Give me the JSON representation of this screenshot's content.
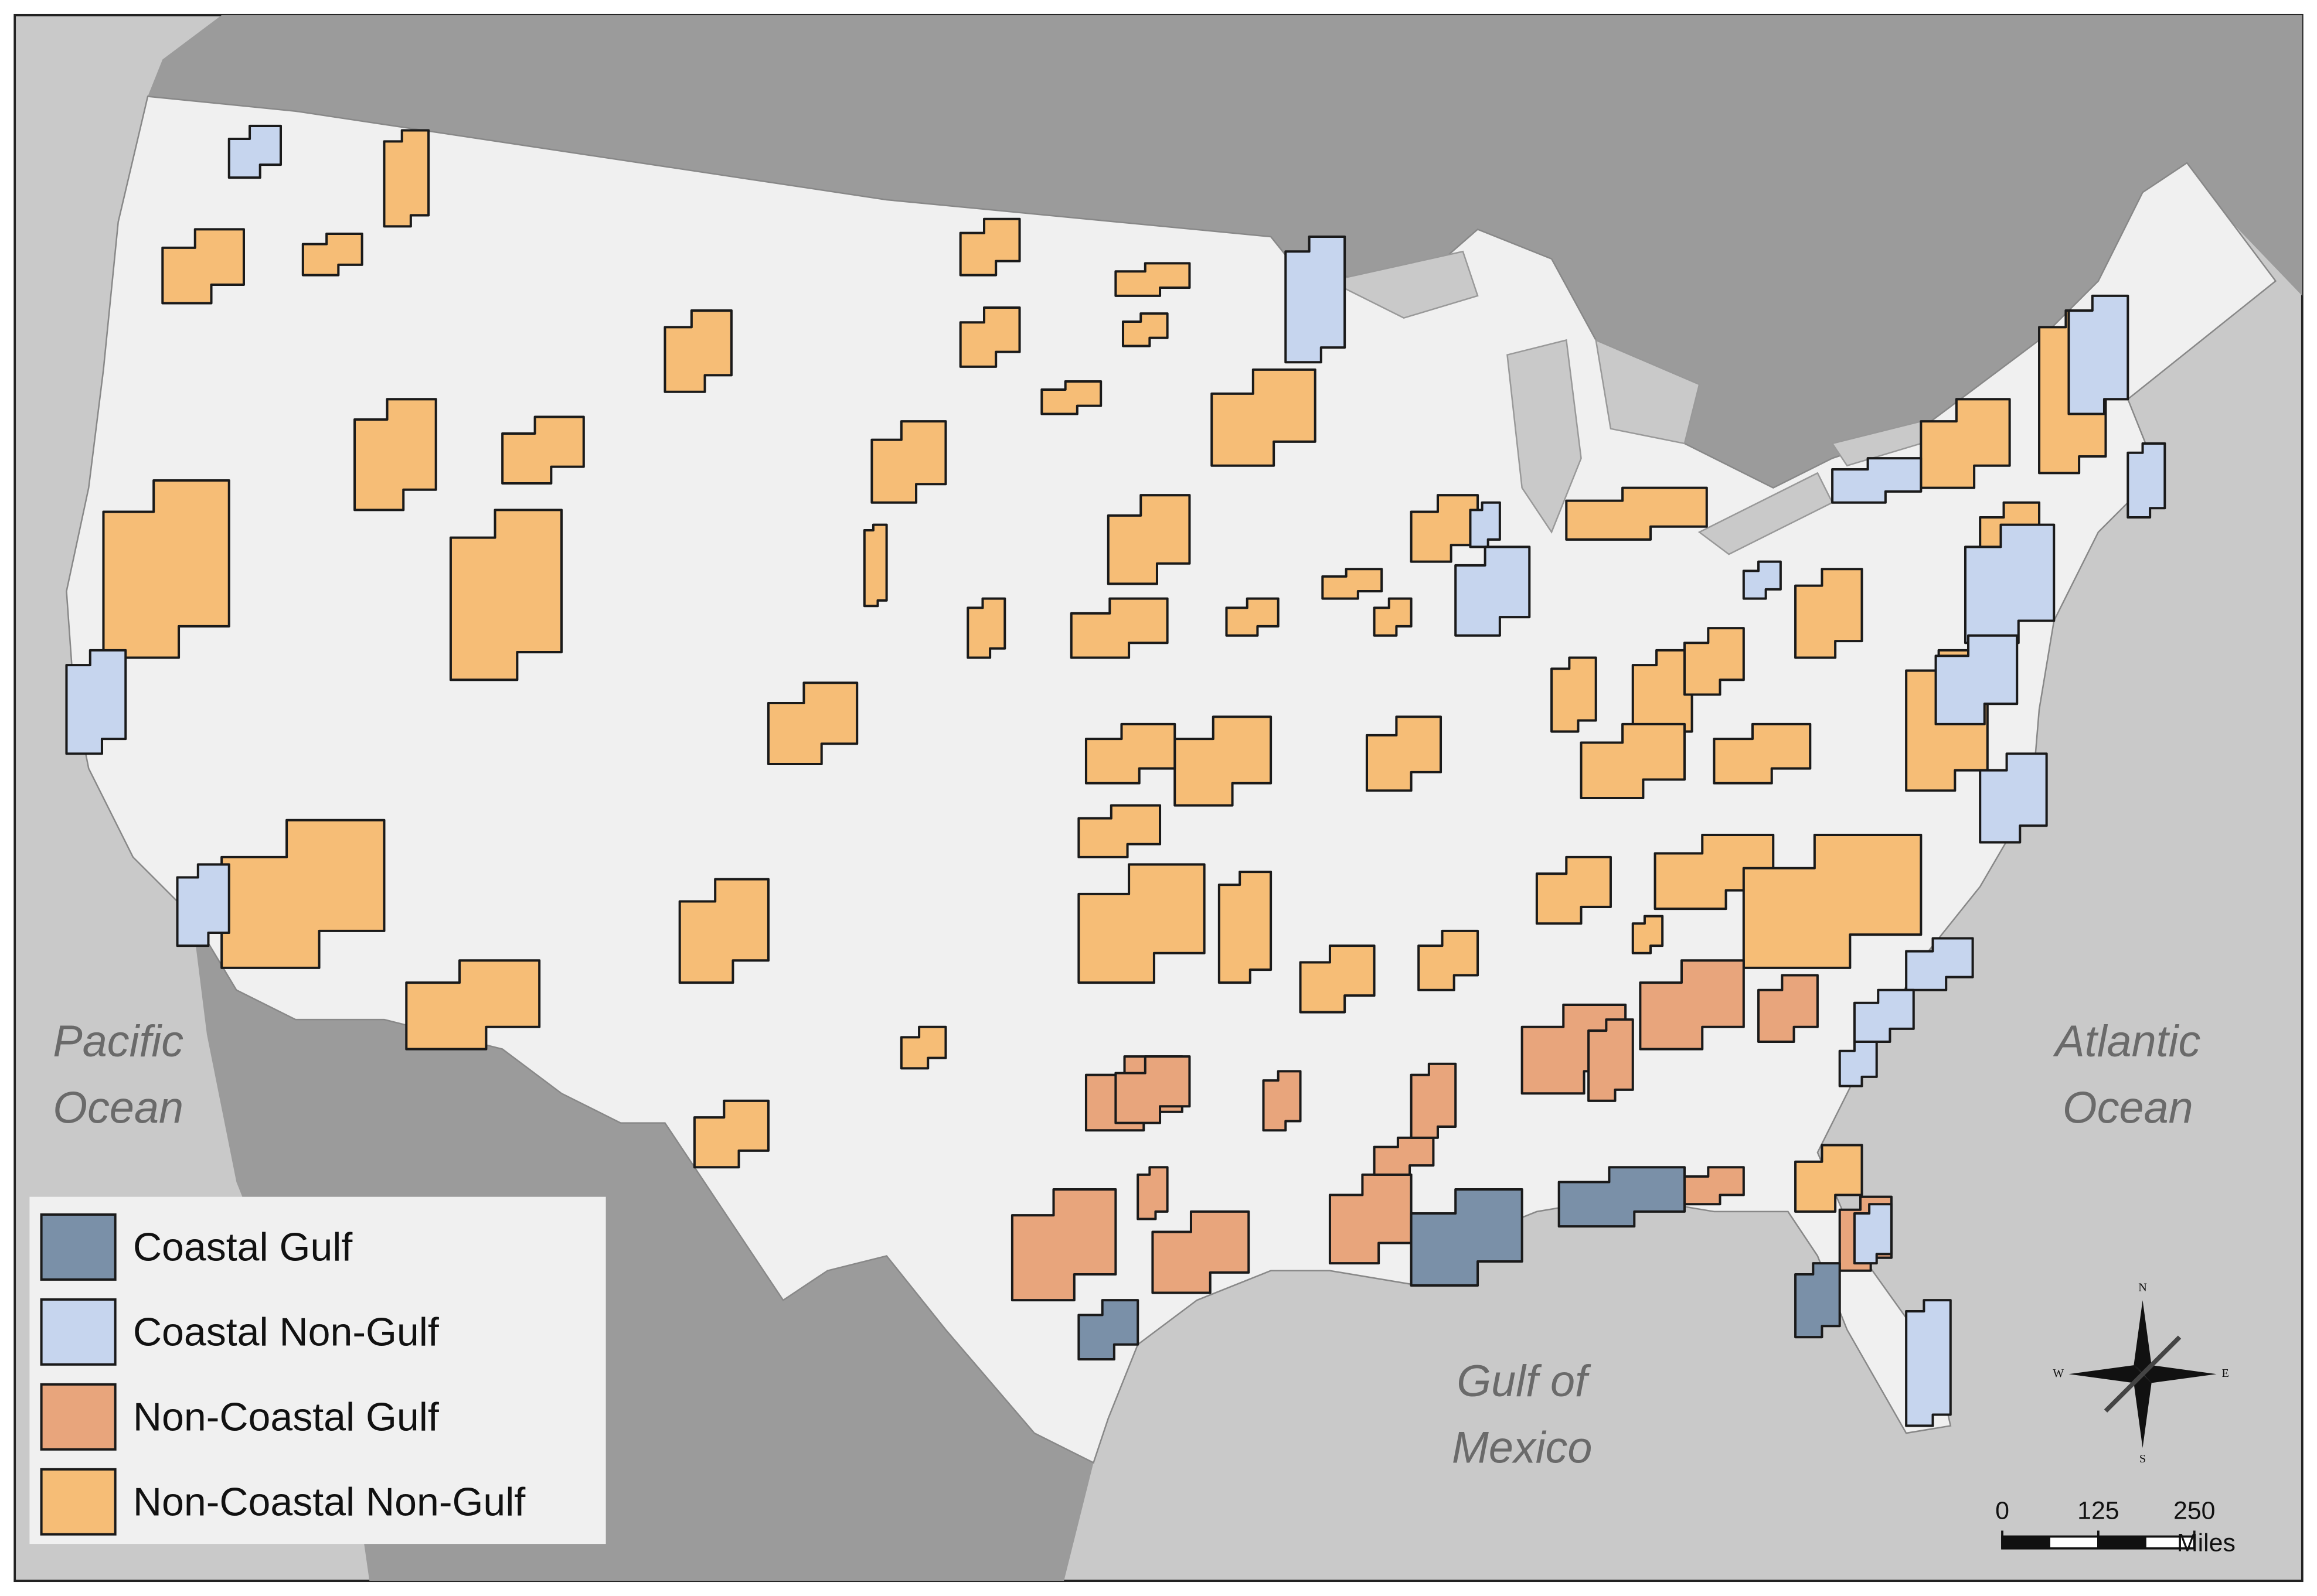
{
  "legend": {
    "items": [
      {
        "name": "Coastal Gulf",
        "color": "#7a90a8"
      },
      {
        "name": "Coastal Non-Gulf",
        "color": "#c6d5ee"
      },
      {
        "name": "Non-Coastal Gulf",
        "color": "#e8a57c"
      },
      {
        "name": "Non-Coastal Non-Gulf",
        "color": "#f6bd76"
      }
    ]
  },
  "ocean_labels": [
    [
      "Pacific",
      "Ocean"
    ],
    [
      "Atlantic",
      "Ocean"
    ],
    [
      "Gulf of",
      "Mexico"
    ]
  ],
  "scale_bar": {
    "ticks": [
      0,
      125,
      250
    ],
    "unit": "Miles"
  },
  "compass": {
    "N": "N",
    "E": "E",
    "S": "S",
    "W": "W"
  }
}
